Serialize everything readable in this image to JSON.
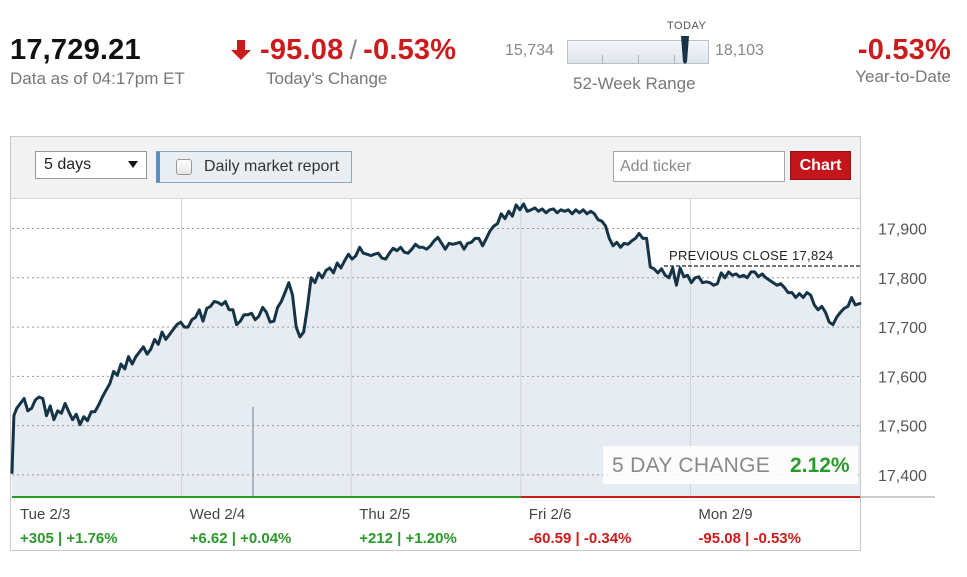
{
  "header": {
    "price": "17,729.21",
    "data_as_of": "Data as of 04:17pm ET",
    "todays_change_points": "-95.08",
    "todays_change_separator": "/",
    "todays_change_percent": "-0.53%",
    "todays_change_label": "Today's Change",
    "range_today_label": "TODAY",
    "range_low": "15,734",
    "range_high": "18,103",
    "range_label": "52-Week Range",
    "ytd_value": "-0.53%",
    "ytd_label": "Year-to-Date",
    "colors": {
      "negative": "#cc1b1b",
      "positive": "#2a9a2a",
      "line": "#163447",
      "fill": "#e6ecf2"
    }
  },
  "range_position": 0.83,
  "toolbar": {
    "period_selected": "5 days",
    "daily_report_label": "Daily market report",
    "ticker_placeholder": "Add ticker",
    "chart_button": "Chart"
  },
  "chart_data": {
    "type": "line",
    "title": "",
    "xlabel": "",
    "ylabel": "",
    "ylim": [
      17355,
      17960
    ],
    "yticks": [
      "17,900",
      "17,800",
      "17,700",
      "17,600",
      "17,500",
      "17,400"
    ],
    "ytick_values": [
      17900,
      17800,
      17700,
      17600,
      17500,
      17400
    ],
    "grid": "dotted-horizontal",
    "previous_close_label": "PREVIOUS CLOSE 17,824",
    "previous_close_value": 17824,
    "five_day_change_label": "5 DAY CHANGE",
    "five_day_change_value": "2.12%",
    "days": [
      {
        "label": "Tue 2/3",
        "change": "+305 | +1.76%",
        "direction": "up"
      },
      {
        "label": "Wed 2/4",
        "change": "+6.62 | +0.04%",
        "direction": "up"
      },
      {
        "label": "Thu 2/5",
        "change": "+212 | +1.20%",
        "direction": "up"
      },
      {
        "label": "Fri 2/6",
        "change": "-60.59 | -0.34%",
        "direction": "down"
      },
      {
        "label": "Mon 2/9",
        "change": "-95.08 | -0.53%",
        "direction": "down"
      }
    ],
    "series": [
      {
        "values": [
          [
            0.0,
            17405
          ],
          [
            0.2,
            17520
          ],
          [
            0.5,
            17535
          ],
          [
            0.9,
            17545
          ],
          [
            1.3,
            17555
          ],
          [
            1.7,
            17530
          ],
          [
            2.1,
            17535
          ],
          [
            2.5,
            17552
          ],
          [
            2.9,
            17558
          ],
          [
            3.3,
            17555
          ],
          [
            3.7,
            17520
          ],
          [
            4.1,
            17540
          ],
          [
            4.5,
            17512
          ],
          [
            4.9,
            17530
          ],
          [
            5.3,
            17525
          ],
          [
            5.7,
            17545
          ],
          [
            6.1,
            17528
          ],
          [
            6.5,
            17512
          ],
          [
            6.9,
            17523
          ],
          [
            7.3,
            17502
          ],
          [
            7.7,
            17518
          ],
          [
            8.1,
            17510
          ],
          [
            8.5,
            17528
          ],
          [
            8.9,
            17528
          ],
          [
            9.3,
            17542
          ],
          [
            9.7,
            17558
          ],
          [
            10.1,
            17572
          ],
          [
            10.5,
            17585
          ],
          [
            10.9,
            17610
          ],
          [
            11.3,
            17602
          ],
          [
            11.7,
            17625
          ],
          [
            12.1,
            17615
          ],
          [
            12.5,
            17640
          ],
          [
            12.9,
            17625
          ],
          [
            13.3,
            17640
          ],
          [
            13.7,
            17650
          ],
          [
            14.1,
            17660
          ],
          [
            14.5,
            17645
          ],
          [
            14.9,
            17655
          ],
          [
            15.3,
            17675
          ],
          [
            15.7,
            17665
          ],
          [
            16.1,
            17690
          ],
          [
            16.5,
            17675
          ],
          [
            16.9,
            17685
          ],
          [
            17.3,
            17695
          ],
          [
            17.7,
            17705
          ],
          [
            18.1,
            17710
          ],
          [
            18.5,
            17700
          ],
          [
            18.9,
            17700
          ],
          [
            19.3,
            17715
          ],
          [
            19.7,
            17720
          ],
          [
            20.1,
            17735
          ],
          [
            20.5,
            17712
          ],
          [
            20.9,
            17738
          ],
          [
            21.3,
            17742
          ],
          [
            21.7,
            17752
          ],
          [
            22.1,
            17750
          ],
          [
            22.5,
            17745
          ],
          [
            22.9,
            17752
          ],
          [
            23.3,
            17735
          ],
          [
            23.7,
            17735
          ],
          [
            24.1,
            17705
          ],
          [
            24.5,
            17712
          ],
          [
            24.9,
            17725
          ],
          [
            25.3,
            17725
          ],
          [
            25.7,
            17728
          ],
          [
            26.1,
            17715
          ],
          [
            26.5,
            17722
          ],
          [
            26.9,
            17740
          ],
          [
            27.3,
            17730
          ],
          [
            27.7,
            17710
          ],
          [
            28.1,
            17712
          ],
          [
            28.5,
            17740
          ],
          [
            28.9,
            17752
          ],
          [
            29.3,
            17770
          ],
          [
            29.7,
            17790
          ],
          [
            30.1,
            17765
          ],
          [
            30.5,
            17700
          ],
          [
            30.9,
            17680
          ],
          [
            31.3,
            17690
          ],
          [
            31.7,
            17740
          ],
          [
            32.1,
            17800
          ],
          [
            32.5,
            17790
          ],
          [
            32.9,
            17810
          ],
          [
            33.3,
            17800
          ],
          [
            33.7,
            17815
          ],
          [
            34.1,
            17820
          ],
          [
            34.5,
            17810
          ],
          [
            34.9,
            17830
          ],
          [
            35.3,
            17820
          ],
          [
            35.7,
            17835
          ],
          [
            36.1,
            17848
          ],
          [
            36.5,
            17838
          ],
          [
            36.9,
            17845
          ],
          [
            37.3,
            17862
          ],
          [
            37.7,
            17850
          ],
          [
            38.1,
            17848
          ],
          [
            38.5,
            17845
          ],
          [
            38.9,
            17848
          ],
          [
            39.3,
            17850
          ],
          [
            39.7,
            17840
          ],
          [
            40.1,
            17838
          ],
          [
            40.5,
            17850
          ],
          [
            40.9,
            17860
          ],
          [
            41.3,
            17855
          ],
          [
            41.7,
            17862
          ],
          [
            42.1,
            17852
          ],
          [
            42.5,
            17850
          ],
          [
            42.9,
            17858
          ],
          [
            43.3,
            17868
          ],
          [
            43.7,
            17862
          ],
          [
            44.1,
            17862
          ],
          [
            44.5,
            17858
          ],
          [
            44.9,
            17865
          ],
          [
            45.3,
            17875
          ],
          [
            45.7,
            17882
          ],
          [
            46.1,
            17870
          ],
          [
            46.5,
            17858
          ],
          [
            46.9,
            17870
          ],
          [
            47.3,
            17868
          ],
          [
            47.7,
            17870
          ],
          [
            48.1,
            17872
          ],
          [
            48.5,
            17858
          ],
          [
            48.9,
            17870
          ],
          [
            49.3,
            17872
          ],
          [
            49.7,
            17880
          ],
          [
            50.1,
            17880
          ],
          [
            50.5,
            17865
          ],
          [
            50.9,
            17880
          ],
          [
            51.3,
            17895
          ],
          [
            51.7,
            17905
          ],
          [
            52.1,
            17910
          ],
          [
            52.5,
            17930
          ],
          [
            52.9,
            17920
          ],
          [
            53.3,
            17935
          ],
          [
            53.7,
            17925
          ],
          [
            54.1,
            17948
          ],
          [
            54.5,
            17938
          ],
          [
            54.9,
            17950
          ],
          [
            55.3,
            17935
          ],
          [
            55.7,
            17938
          ],
          [
            56.1,
            17942
          ],
          [
            56.5,
            17935
          ],
          [
            56.9,
            17940
          ],
          [
            57.3,
            17932
          ],
          [
            57.7,
            17938
          ],
          [
            58.1,
            17940
          ],
          [
            58.5,
            17932
          ],
          [
            58.9,
            17938
          ],
          [
            59.3,
            17935
          ],
          [
            59.7,
            17938
          ],
          [
            60.1,
            17930
          ],
          [
            60.5,
            17938
          ],
          [
            60.9,
            17932
          ],
          [
            61.3,
            17938
          ],
          [
            61.7,
            17930
          ],
          [
            62.1,
            17935
          ],
          [
            62.5,
            17930
          ],
          [
            62.9,
            17918
          ],
          [
            63.3,
            17915
          ],
          [
            63.7,
            17905
          ],
          [
            64.1,
            17880
          ],
          [
            64.5,
            17865
          ],
          [
            64.9,
            17872
          ],
          [
            65.3,
            17862
          ],
          [
            65.7,
            17870
          ],
          [
            66.1,
            17868
          ],
          [
            66.5,
            17875
          ],
          [
            66.9,
            17880
          ],
          [
            67.3,
            17890
          ],
          [
            67.7,
            17880
          ],
          [
            68.1,
            17880
          ],
          [
            68.5,
            17822
          ],
          [
            68.9,
            17818
          ],
          [
            69.3,
            17810
          ],
          [
            69.7,
            17818
          ],
          [
            70.1,
            17805
          ],
          [
            70.5,
            17800
          ],
          [
            70.9,
            17820
          ],
          [
            71.3,
            17785
          ],
          [
            71.7,
            17820
          ],
          [
            72.1,
            17802
          ],
          [
            72.5,
            17805
          ],
          [
            72.9,
            17790
          ],
          [
            73.3,
            17800
          ],
          [
            73.7,
            17802
          ],
          [
            74.1,
            17790
          ],
          [
            74.5,
            17792
          ],
          [
            74.9,
            17790
          ],
          [
            75.3,
            17785
          ],
          [
            75.7,
            17788
          ],
          [
            76.1,
            17810
          ],
          [
            76.5,
            17800
          ],
          [
            76.9,
            17812
          ],
          [
            77.3,
            17805
          ],
          [
            77.7,
            17808
          ],
          [
            78.1,
            17802
          ],
          [
            78.5,
            17805
          ],
          [
            78.9,
            17800
          ],
          [
            79.3,
            17812
          ],
          [
            79.7,
            17812
          ],
          [
            80.1,
            17802
          ],
          [
            80.5,
            17808
          ],
          [
            80.9,
            17800
          ],
          [
            81.3,
            17795
          ],
          [
            81.7,
            17790
          ],
          [
            82.1,
            17785
          ],
          [
            82.5,
            17788
          ],
          [
            82.9,
            17780
          ],
          [
            83.3,
            17770
          ],
          [
            83.7,
            17770
          ],
          [
            84.1,
            17760
          ],
          [
            84.5,
            17768
          ],
          [
            84.9,
            17760
          ],
          [
            85.3,
            17770
          ],
          [
            85.7,
            17765
          ],
          [
            86.1,
            17745
          ],
          [
            86.5,
            17735
          ],
          [
            86.9,
            17742
          ],
          [
            87.3,
            17730
          ],
          [
            87.7,
            17710
          ],
          [
            88.1,
            17705
          ],
          [
            88.5,
            17720
          ],
          [
            88.9,
            17730
          ],
          [
            89.3,
            17738
          ],
          [
            89.7,
            17742
          ],
          [
            90.1,
            17760
          ],
          [
            90.5,
            17745
          ],
          [
            91.0,
            17748
          ]
        ]
      }
    ]
  }
}
